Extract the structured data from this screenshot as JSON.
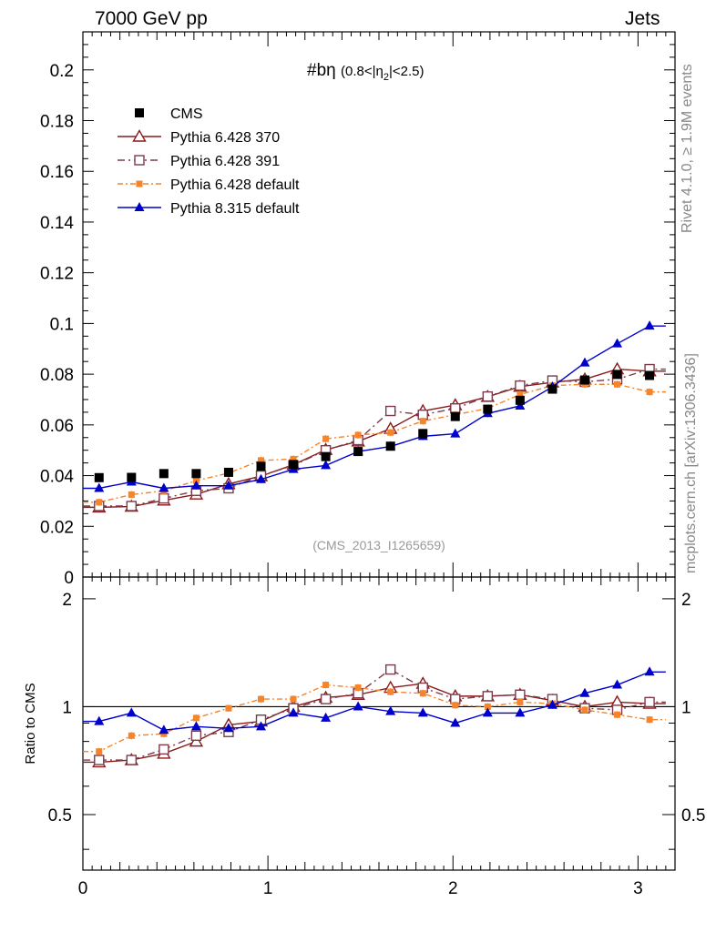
{
  "header": {
    "left": "7000 GeV pp",
    "right": "Jets"
  },
  "side": {
    "rivet": "Rivet 4.1.0, ≥ 1.9M events",
    "ref": "mcplots.cern.ch [arXiv:1306.3436]"
  },
  "chart_data": {
    "type": "line",
    "title": "#bη",
    "subtitle_pre": "(0.8<|η",
    "subtitle_sub": "2",
    "subtitle_post": "|<2.5)",
    "watermark": "(CMS_2013_I1265659)",
    "xlabel": "",
    "ylabel_ratio": "Ratio to CMS",
    "xlim": [
      0,
      3.2
    ],
    "ylim": [
      0,
      0.215
    ],
    "ratio_ylim": [
      0.35,
      2.3
    ],
    "x_ticks": [
      "0",
      "1",
      "2",
      "3"
    ],
    "y_ticks": [
      "0",
      "0.02",
      "0.04",
      "0.06",
      "0.08",
      "0.1",
      "0.12",
      "0.14",
      "0.16",
      "0.18",
      "0.2"
    ],
    "ratio_ticks": [
      "0.5",
      "1",
      "2"
    ],
    "x": [
      0.0875,
      0.2625,
      0.4375,
      0.6125,
      0.7875,
      0.9625,
      1.1375,
      1.3125,
      1.4875,
      1.6625,
      1.8375,
      2.0125,
      2.1875,
      2.3625,
      2.5375,
      2.7125,
      2.8875,
      3.0625
    ],
    "bin_width": 0.175,
    "series": [
      {
        "name": "CMS",
        "color": "#000000",
        "marker": "square",
        "dash": "none",
        "show_line": false,
        "values": [
          0.0392,
          0.0393,
          0.0408,
          0.0408,
          0.0413,
          0.0437,
          0.0444,
          0.0475,
          0.0495,
          0.0516,
          0.0566,
          0.0633,
          0.0662,
          0.0697,
          0.0741,
          0.0777,
          0.0799,
          0.0795
        ]
      },
      {
        "name": "Pythia 6.428 370",
        "color": "#8b1a1a",
        "marker": "triangle-open",
        "dash": "none",
        "show_line": true,
        "values": [
          0.0275,
          0.0278,
          0.0302,
          0.0326,
          0.0367,
          0.0398,
          0.0443,
          0.0502,
          0.0535,
          0.0585,
          0.0655,
          0.0678,
          0.0711,
          0.0751,
          0.0768,
          0.078,
          0.082,
          0.0812
        ],
        "ratio": [
          0.7,
          0.71,
          0.74,
          0.8,
          0.89,
          0.91,
          1.0,
          1.06,
          1.08,
          1.13,
          1.16,
          1.07,
          1.07,
          1.08,
          1.04,
          1.0,
          1.03,
          1.02
        ]
      },
      {
        "name": "Pythia 6.428 391",
        "color": "#7a3b4a",
        "marker": "square-open",
        "dash": "8,4,2,4",
        "show_line": true,
        "values": [
          0.028,
          0.028,
          0.031,
          0.034,
          0.035,
          0.04,
          0.044,
          0.05,
          0.054,
          0.0655,
          0.064,
          0.0665,
          0.0712,
          0.0755,
          0.0775,
          0.077,
          0.078,
          0.082
        ],
        "ratio": [
          0.71,
          0.71,
          0.76,
          0.83,
          0.85,
          0.92,
          0.99,
          1.05,
          1.09,
          1.27,
          1.13,
          1.05,
          1.07,
          1.08,
          1.05,
          0.99,
          0.98,
          1.03
        ]
      },
      {
        "name": "Pythia 6.428 default",
        "color": "#f5842a",
        "marker": "square-small",
        "dash": "6,3,2,3",
        "show_line": true,
        "values": [
          0.0295,
          0.0325,
          0.034,
          0.038,
          0.041,
          0.046,
          0.0465,
          0.0545,
          0.056,
          0.057,
          0.0615,
          0.064,
          0.0665,
          0.072,
          0.0755,
          0.076,
          0.076,
          0.073
        ],
        "ratio": [
          0.75,
          0.83,
          0.84,
          0.93,
          0.99,
          1.05,
          1.05,
          1.15,
          1.13,
          1.1,
          1.09,
          1.01,
          1.0,
          1.03,
          1.02,
          0.98,
          0.95,
          0.92
        ]
      },
      {
        "name": "Pythia 8.315 default",
        "color": "#0000cc",
        "marker": "triangle",
        "dash": "none",
        "show_line": true,
        "values": [
          0.035,
          0.0375,
          0.035,
          0.036,
          0.036,
          0.0385,
          0.0425,
          0.044,
          0.0495,
          0.0515,
          0.0555,
          0.0565,
          0.0645,
          0.0675,
          0.075,
          0.0845,
          0.092,
          0.099
        ],
        "ratio": [
          0.91,
          0.96,
          0.86,
          0.88,
          0.87,
          0.88,
          0.96,
          0.93,
          1.0,
          0.97,
          0.96,
          0.9,
          0.96,
          0.96,
          1.01,
          1.09,
          1.15,
          1.25
        ]
      }
    ]
  }
}
